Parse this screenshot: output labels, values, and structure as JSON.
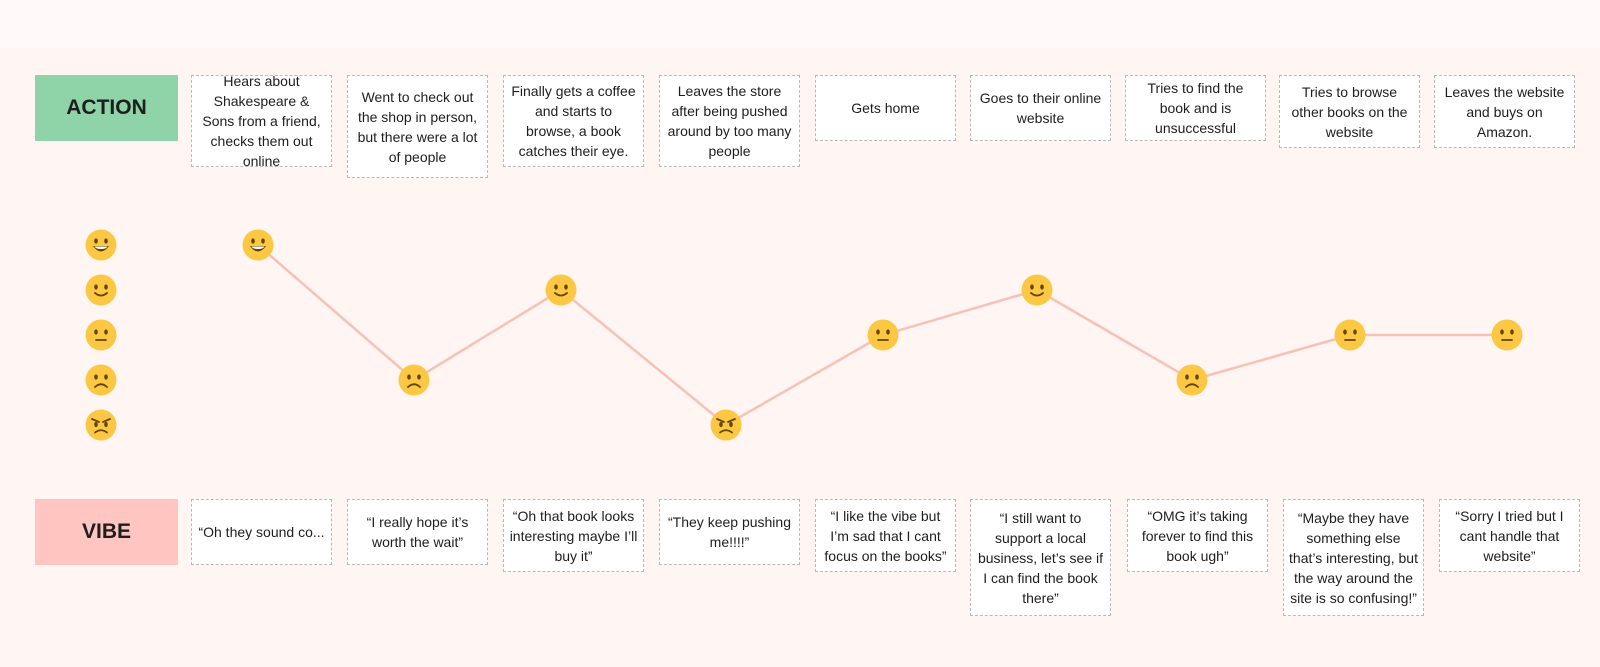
{
  "labels": {
    "action": "ACTION",
    "vibe": "VIBE"
  },
  "mood_scale": [
    "grinning",
    "slight-smile",
    "neutral",
    "frown",
    "angry"
  ],
  "steps": [
    {
      "action": "Hears about Shakespeare & Sons from a friend, checks them out online",
      "vibe": "“Oh they sound co...",
      "mood": "grinning"
    },
    {
      "action": "Went to check out the shop in person, but there were a lot of people",
      "vibe": "“I really hope it’s worth the wait”",
      "mood": "frown"
    },
    {
      "action": "Finally gets a coffee and starts to browse, a book catches their eye.",
      "vibe": "“Oh that book looks interesting maybe I’ll buy it”",
      "mood": "slight-smile"
    },
    {
      "action": "Leaves the store after being pushed around by too many people",
      "vibe": "“They keep pushing me!!!!”",
      "mood": "angry"
    },
    {
      "action": "Gets home",
      "vibe": "“I like the vibe but I’m sad that I cant focus on the books”",
      "mood": "neutral"
    },
    {
      "action": "Goes to their online website",
      "vibe": "“I still want to support a local business, let’s see if I can find the book there”",
      "mood": "slight-smile"
    },
    {
      "action": "Tries to find the book and is unsuccessful",
      "vibe": "“OMG it’s taking forever to find this book ugh”",
      "mood": "frown"
    },
    {
      "action": "Tries to browse other books on the website",
      "vibe": "“Maybe they have something else that’s interesting, but the way around the site is so confusing!”",
      "mood": "neutral"
    },
    {
      "action": "Leaves the website and buys on Amazon.",
      "vibe": "“Sorry I tried but I cant handle that website”",
      "mood": "neutral"
    }
  ],
  "colors": {
    "action_label": "#8ed4a8",
    "vibe_label": "#ffc6c1",
    "line": "#f9c0b8",
    "face": "#fcc843"
  }
}
